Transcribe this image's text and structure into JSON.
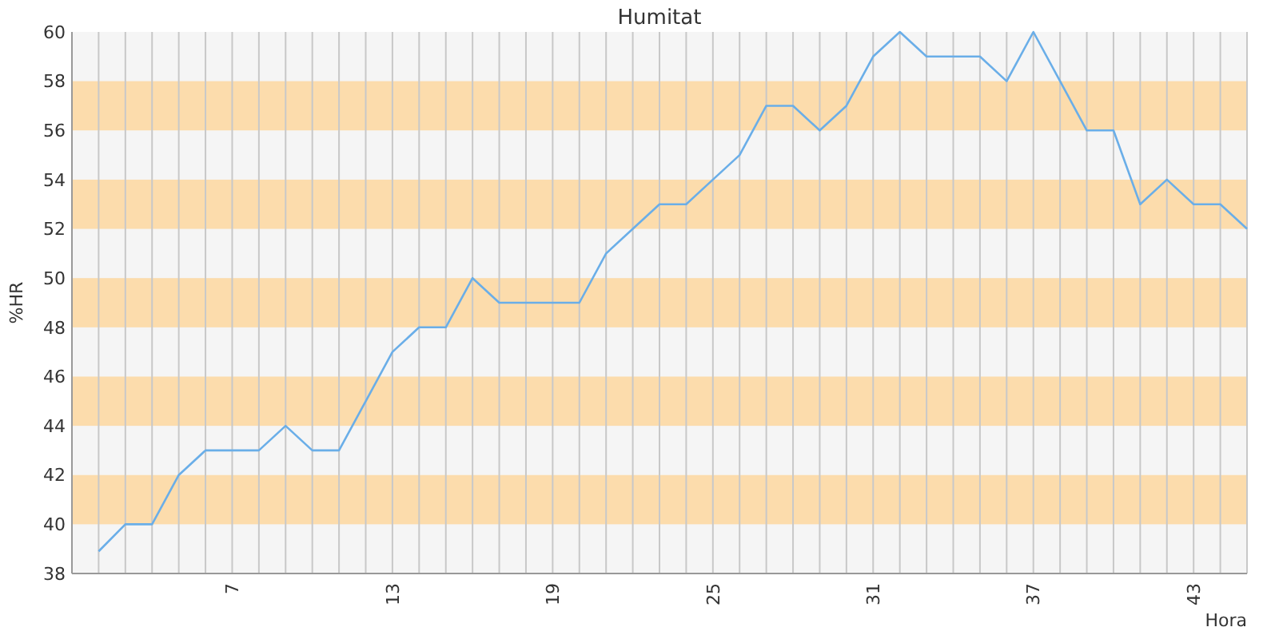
{
  "chart_data": {
    "type": "line",
    "title": "Humitat",
    "xlabel": "Hora",
    "ylabel": "%HR",
    "x": [
      2,
      3,
      4,
      5,
      6,
      7,
      8,
      9,
      10,
      11,
      12,
      13,
      14,
      15,
      16,
      17,
      18,
      19,
      20,
      21,
      22,
      23,
      24,
      25,
      26,
      27,
      28,
      29,
      30,
      31,
      32,
      33,
      34,
      35,
      36,
      37,
      38,
      39,
      40,
      41,
      42,
      43,
      44,
      45
    ],
    "series": [
      {
        "color": "#6aaee8",
        "values": [
          38.9,
          40,
          40,
          42,
          43,
          43,
          43,
          44,
          43,
          43,
          45,
          47,
          48,
          48,
          50,
          49,
          49,
          49,
          49,
          51,
          52,
          53,
          53,
          54,
          55,
          57,
          57,
          56,
          57,
          59,
          60,
          59,
          59,
          59,
          58,
          60,
          58,
          56,
          56,
          53,
          54,
          53,
          53,
          52
        ]
      }
    ],
    "xlim": [
      1,
      45
    ],
    "xticks": [
      {
        "value": 1,
        "label": null
      },
      {
        "value": 2,
        "label": null
      },
      {
        "value": 3,
        "label": null
      },
      {
        "value": 4,
        "label": null
      },
      {
        "value": 5,
        "label": null
      },
      {
        "value": 6,
        "label": null
      },
      7,
      {
        "value": 8,
        "label": null
      },
      {
        "value": 9,
        "label": null
      },
      {
        "value": 10,
        "label": null
      },
      {
        "value": 11,
        "label": null
      },
      {
        "value": 12,
        "label": null
      },
      13,
      {
        "value": 14,
        "label": null
      },
      {
        "value": 15,
        "label": null
      },
      {
        "value": 16,
        "label": null
      },
      {
        "value": 17,
        "label": null
      },
      {
        "value": 18,
        "label": null
      },
      19,
      {
        "value": 20,
        "label": null
      },
      {
        "value": 21,
        "label": null
      },
      {
        "value": 22,
        "label": null
      },
      {
        "value": 23,
        "label": null
      },
      {
        "value": 24,
        "label": null
      },
      25,
      {
        "value": 26,
        "label": null
      },
      {
        "value": 27,
        "label": null
      },
      {
        "value": 28,
        "label": null
      },
      {
        "value": 29,
        "label": null
      },
      {
        "value": 30,
        "label": null
      },
      31,
      {
        "value": 32,
        "label": null
      },
      {
        "value": 33,
        "label": null
      },
      {
        "value": 34,
        "label": null
      },
      {
        "value": 35,
        "label": null
      },
      {
        "value": 36,
        "label": null
      },
      37,
      {
        "value": 38,
        "label": null
      },
      {
        "value": 39,
        "label": null
      },
      {
        "value": 40,
        "label": null
      },
      {
        "value": 41,
        "label": null
      },
      {
        "value": 42,
        "label": null
      },
      43,
      {
        "value": 44,
        "label": null
      },
      {
        "value": 45,
        "label": null
      }
    ],
    "ylim": [
      38,
      60
    ],
    "yticks": [
      38,
      40,
      42,
      44,
      46,
      48,
      50,
      52,
      54,
      56,
      58,
      60
    ],
    "bands": [
      {
        "axis": "y",
        "from": 40,
        "to": 42,
        "color": "#fcdcac"
      },
      {
        "axis": "y",
        "from": 44,
        "to": 46,
        "color": "#fcdcac"
      },
      {
        "axis": "y",
        "from": 48,
        "to": 50,
        "color": "#fcdcac"
      },
      {
        "axis": "y",
        "from": 52,
        "to": 54,
        "color": "#fcdcac"
      },
      {
        "axis": "y",
        "from": 56,
        "to": 58,
        "color": "#fcdcac"
      }
    ],
    "grid": "x",
    "marker": "none",
    "line_style": "solid"
  }
}
